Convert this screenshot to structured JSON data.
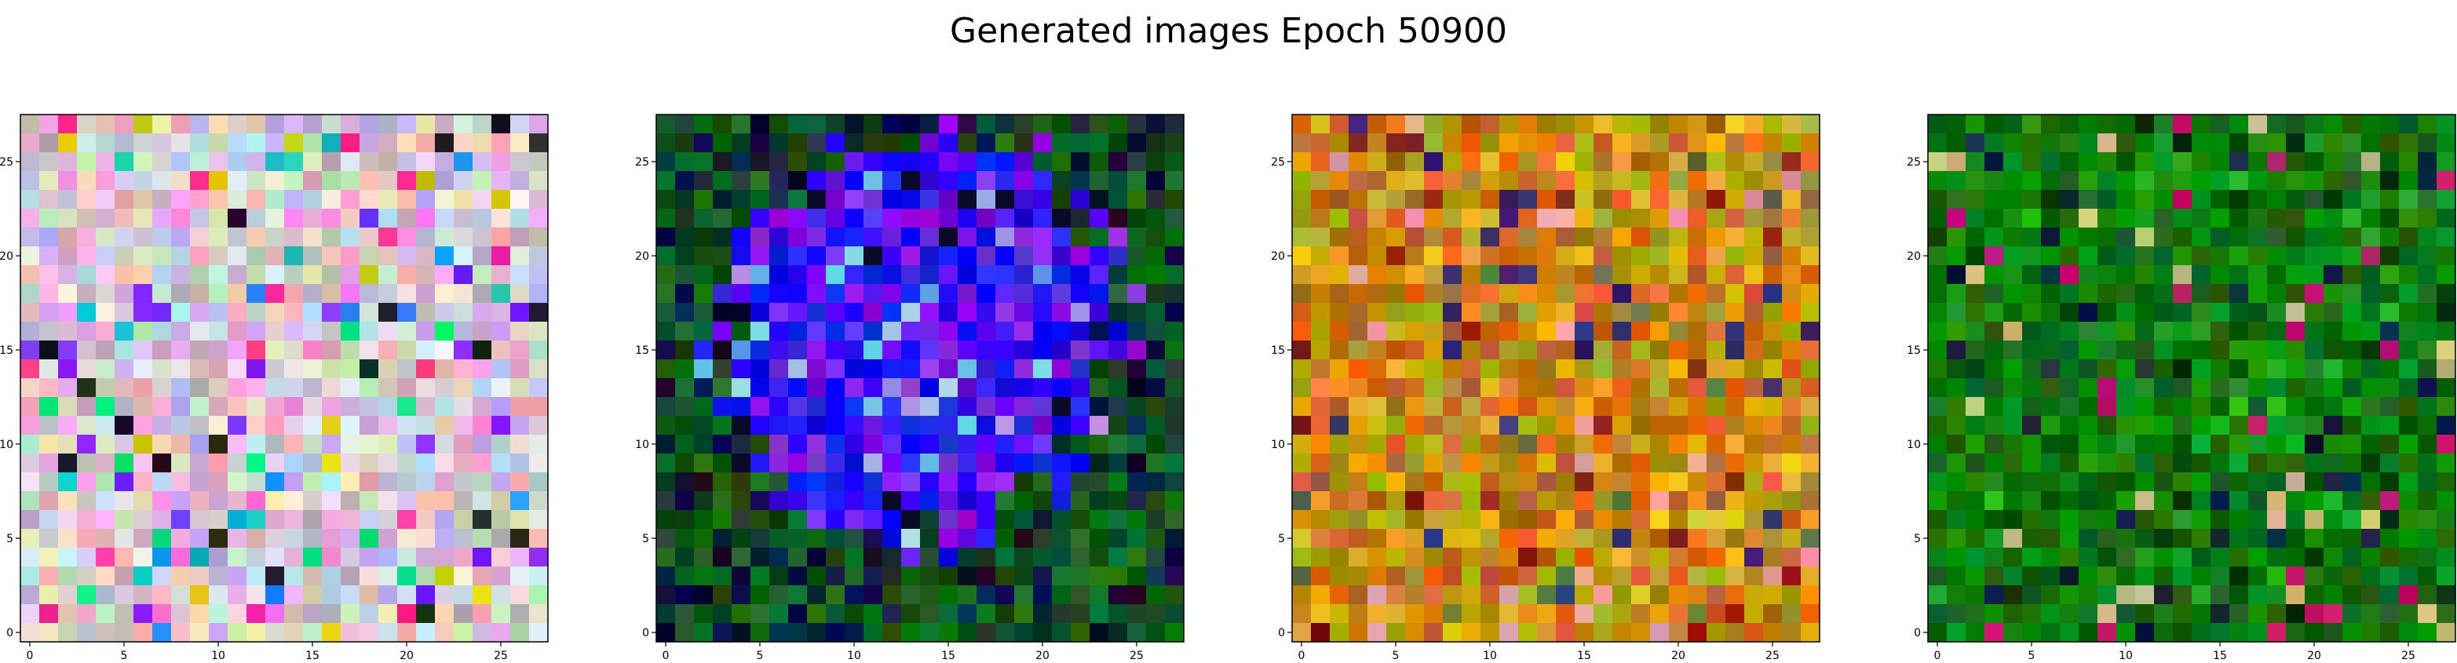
{
  "figure": {
    "title": "Generated images Epoch 50900"
  },
  "chart_data": [
    {
      "type": "heatmap",
      "style": "image",
      "grid_size": [
        28,
        28
      ],
      "palette": {
        "base": "#d5c9d0",
        "spread": 45,
        "vivid": [
          "#1e90ff",
          "#ff2e93",
          "#00e676",
          "#7b2cff",
          "#d4d000",
          "#1a1a1a",
          "#ff7ae0",
          "#10c0c0"
        ]
      },
      "x_ticks": [
        0,
        5,
        10,
        15,
        20,
        25
      ],
      "y_ticks": [
        0,
        5,
        10,
        15,
        20,
        25
      ],
      "xlim": [
        -0.5,
        27.5
      ],
      "ylim": [
        27.5,
        -0.5
      ],
      "seed": 11
    },
    {
      "type": "heatmap",
      "style": "image",
      "grid_size": [
        28,
        28
      ],
      "palette": {
        "center": "#1a10f0",
        "center_alt": "#7a1ae8",
        "edge": "#0f5a1e",
        "edge_alt": "#0a1a3a"
      },
      "x_ticks": [
        0,
        5,
        10,
        15,
        20,
        25
      ],
      "y_ticks": [
        0,
        5,
        10,
        15,
        20,
        25
      ],
      "xlim": [
        -0.5,
        27.5
      ],
      "ylim": [
        27.5,
        -0.5
      ],
      "seed": 23
    },
    {
      "type": "heatmap",
      "style": "image",
      "grid_size": [
        28,
        28
      ],
      "palette": {
        "base": "#c88a10",
        "spread": 55,
        "accents": [
          "#8a1a10",
          "#e0c020",
          "#3a2a70",
          "#d06030",
          "#607040",
          "#e8a0a0"
        ]
      },
      "x_ticks": [
        0,
        5,
        10,
        15,
        20,
        25
      ],
      "y_ticks": [
        0,
        5,
        10,
        15,
        20,
        25
      ],
      "xlim": [
        -0.5,
        27.5
      ],
      "ylim": [
        27.5,
        -0.5
      ],
      "seed": 37
    },
    {
      "type": "heatmap",
      "style": "image",
      "grid_size": [
        28,
        28
      ],
      "palette": {
        "base": "#0a7a0a",
        "spread": 40,
        "accents": [
          "#003a00",
          "#20b020",
          "#c01070",
          "#102040",
          "#c8c080"
        ]
      },
      "x_ticks": [
        0,
        5,
        10,
        15,
        20,
        25
      ],
      "y_ticks": [
        0,
        5,
        10,
        15,
        20,
        25
      ],
      "xlim": [
        -0.5,
        27.5
      ],
      "ylim": [
        27.5,
        -0.5
      ],
      "seed": 53
    }
  ]
}
